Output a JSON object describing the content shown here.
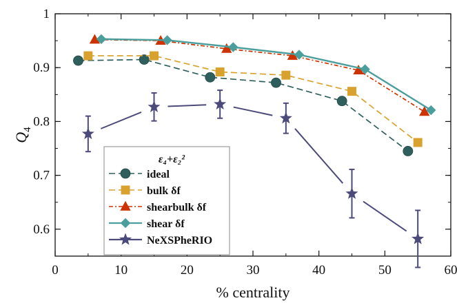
{
  "chart_data": {
    "type": "line",
    "title": "",
    "xlabel": "% centrality",
    "ylabel": "Q",
    "ylabel_sub": "4",
    "xlim": [
      0,
      60
    ],
    "ylim": [
      0.55,
      1.0
    ],
    "xticks": [
      0,
      10,
      20,
      30,
      40,
      50,
      60
    ],
    "yticks": [
      0.6,
      0.7,
      0.8,
      0.9,
      1.0
    ],
    "xtick_labels": [
      "0",
      "10",
      "20",
      "30",
      "40",
      "50",
      "60"
    ],
    "ytick_labels": [
      "0.6",
      "0.7",
      "0.8",
      "0.9",
      "1"
    ],
    "grid": false,
    "legend_placement": "bottom-left",
    "legend_title": "ε₄+ε₂²",
    "series": [
      {
        "name": "ideal",
        "marker": "circle",
        "line": "dashed",
        "color": "#2e5f5d",
        "x": [
          3.5,
          13.5,
          23.5,
          33.5,
          43.5,
          53.5
        ],
        "y": [
          0.913,
          0.915,
          0.882,
          0.872,
          0.838,
          0.745
        ]
      },
      {
        "name": "bulk δf",
        "marker": "square",
        "line": "dashed",
        "color": "#d9a22f",
        "x": [
          5,
          15,
          25,
          35,
          45,
          55
        ],
        "y": [
          0.922,
          0.922,
          0.892,
          0.886,
          0.856,
          0.761
        ]
      },
      {
        "name": "shearbulk δf",
        "marker": "triangle",
        "line": "dashdot",
        "color": "#cc3300",
        "x": [
          6,
          16,
          26,
          36,
          46,
          56
        ],
        "y": [
          0.952,
          0.95,
          0.935,
          0.922,
          0.895,
          0.818
        ]
      },
      {
        "name": "shear δf",
        "marker": "diamond",
        "line": "solid",
        "color": "#4a9e9c",
        "x": [
          7,
          17,
          27,
          37,
          47,
          57
        ],
        "y": [
          0.953,
          0.951,
          0.938,
          0.924,
          0.897,
          0.821
        ]
      },
      {
        "name": "NeXSPheRIO",
        "marker": "star",
        "line": "solid",
        "color": "#4b4a7a",
        "x": [
          5,
          15,
          25,
          35,
          45,
          55
        ],
        "y": [
          0.777,
          0.827,
          0.832,
          0.806,
          0.666,
          0.582
        ],
        "yerr": [
          0.033,
          0.026,
          0.026,
          0.028,
          0.045,
          0.053
        ]
      }
    ]
  }
}
